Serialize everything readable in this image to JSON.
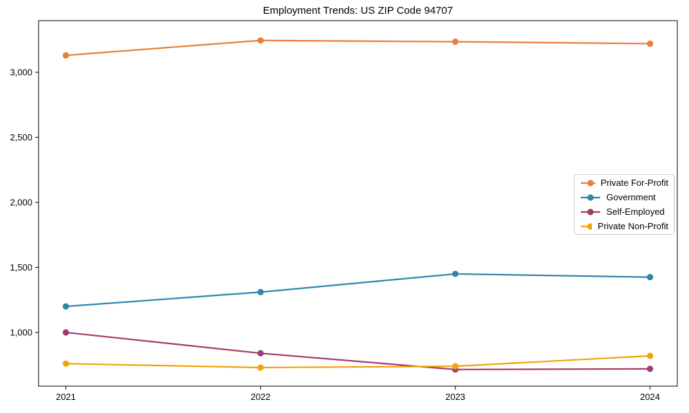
{
  "chart_data": {
    "type": "line",
    "title": "Employment Trends: US ZIP Code 94707",
    "xlabel": "",
    "ylabel": "",
    "x": [
      2021,
      2022,
      2023,
      2024
    ],
    "x_tick_labels": [
      "2021",
      "2022",
      "2023",
      "2024"
    ],
    "y_ticks": [
      1000,
      1500,
      2000,
      2500,
      3000
    ],
    "y_tick_labels": [
      "1,000",
      "1,500",
      "2,000",
      "2,500",
      "3,000"
    ],
    "xlim": [
      2020.86,
      2024.14
    ],
    "ylim": [
      587,
      3397
    ],
    "grid": false,
    "legend_position": "center-right",
    "marker": "circle",
    "series": [
      {
        "name": "Private For-Profit",
        "color": "#E87E3A",
        "values": [
          3130,
          3245,
          3235,
          3220
        ]
      },
      {
        "name": "Government",
        "color": "#2E86AB",
        "values": [
          1200,
          1310,
          1450,
          1425
        ]
      },
      {
        "name": "Self-Employed",
        "color": "#A23B72",
        "values": [
          1000,
          840,
          715,
          720
        ]
      },
      {
        "name": "Private Non-Profit",
        "color": "#F0A30A",
        "values": [
          760,
          730,
          740,
          820
        ]
      }
    ],
    "colors": {
      "axis": "#000000",
      "tick_label": "#000000",
      "background": "#ffffff",
      "legend_border": "#cccccc"
    }
  }
}
